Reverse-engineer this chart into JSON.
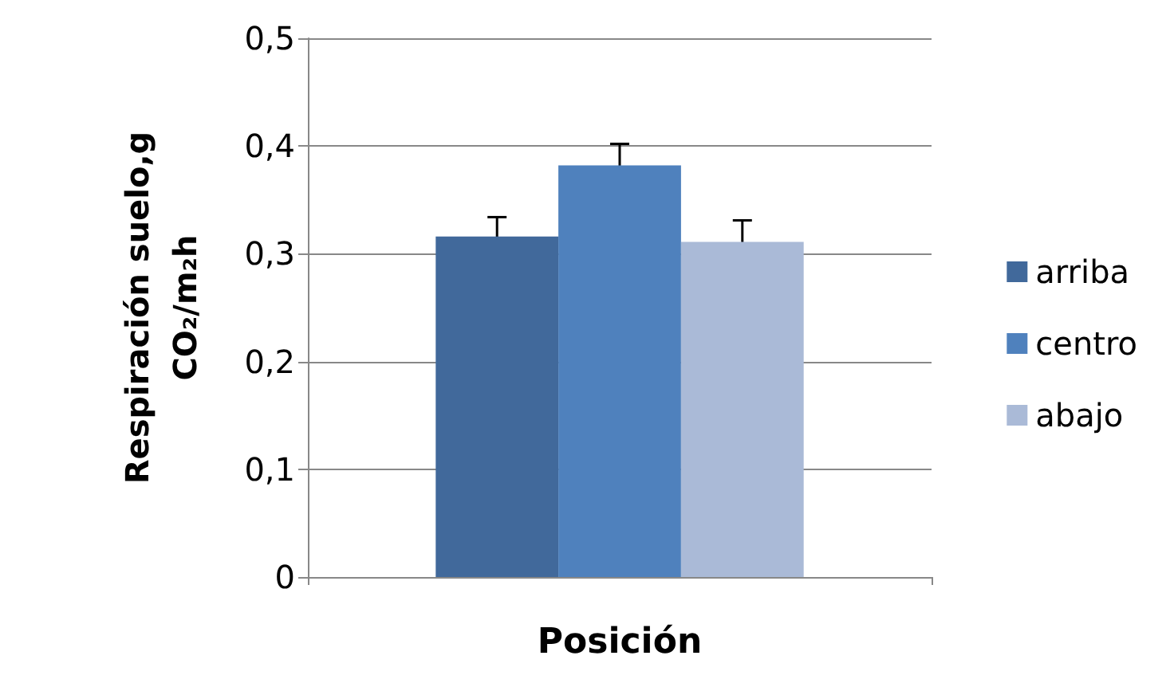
{
  "chart_data": {
    "type": "bar",
    "xlabel": "Posición",
    "ylabel": "Respiración suelo,g\nCO₂/m₂h",
    "categories": [
      null
    ],
    "series": [
      {
        "name": "arriba",
        "color": "#41699b",
        "values": [
          0.316
        ],
        "errors": [
          0.018
        ]
      },
      {
        "name": "centro",
        "color": "#4f81bd",
        "values": [
          0.382
        ],
        "errors": [
          0.02
        ]
      },
      {
        "name": "abajo",
        "color": "#aabad7",
        "values": [
          0.311
        ],
        "errors": [
          0.02
        ]
      }
    ],
    "ylim": [
      0,
      0.5
    ],
    "yticks": [
      0,
      {
        "value": 0.1,
        "label": "0,1"
      },
      {
        "value": 0.2,
        "label": "0,2"
      },
      {
        "value": 0.3,
        "label": "0,3"
      },
      {
        "value": 0.4,
        "label": "0,4"
      },
      {
        "value": 0.5,
        "label": "0,5"
      }
    ],
    "grid": "y",
    "legend": "right"
  }
}
